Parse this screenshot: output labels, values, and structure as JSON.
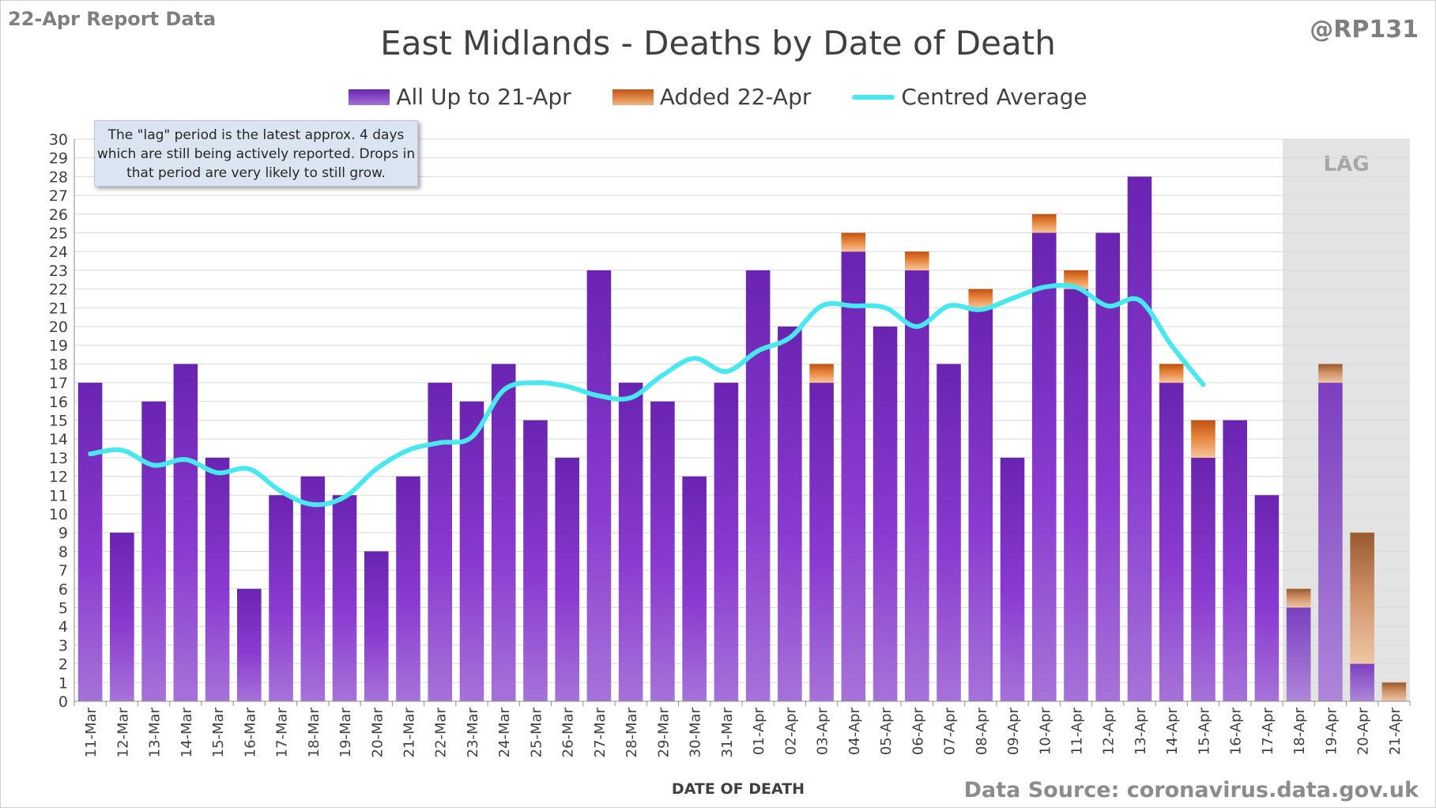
{
  "header": {
    "report_label": "22-Apr Report Data",
    "handle": "@RP131",
    "title": "East Midlands - Deaths by Date of Death"
  },
  "legend": {
    "items": [
      {
        "label": "All Up to 21-Apr",
        "color": "#7a33c4"
      },
      {
        "label": "Added 22-Apr",
        "color": "#e47a2e"
      },
      {
        "label": "Centred Average",
        "color": "#47e8ef"
      }
    ]
  },
  "note": {
    "text": "The \"lag\" period is the latest approx. 4 days which are still being actively reported.  Drops in that period are very likely to still grow."
  },
  "source": "Data Source: coronavirus.data.gov.uk",
  "chart_data": {
    "type": "bar",
    "stacked": true,
    "title": "East Midlands - Deaths by Date of Death",
    "xlabel": "DATE OF DEATH",
    "ylabel": "",
    "ylim": [
      0,
      30
    ],
    "yticks": [
      0,
      1,
      2,
      3,
      4,
      5,
      6,
      7,
      8,
      9,
      10,
      11,
      12,
      13,
      14,
      15,
      16,
      17,
      18,
      19,
      20,
      21,
      22,
      23,
      24,
      25,
      26,
      27,
      28,
      29,
      30
    ],
    "grid": true,
    "legend_position": "top-center",
    "categories": [
      "11-Mar",
      "12-Mar",
      "13-Mar",
      "14-Mar",
      "15-Mar",
      "16-Mar",
      "17-Mar",
      "18-Mar",
      "19-Mar",
      "20-Mar",
      "21-Mar",
      "22-Mar",
      "23-Mar",
      "24-Mar",
      "25-Mar",
      "26-Mar",
      "27-Mar",
      "28-Mar",
      "29-Mar",
      "30-Mar",
      "31-Mar",
      "01-Apr",
      "02-Apr",
      "03-Apr",
      "04-Apr",
      "05-Apr",
      "06-Apr",
      "07-Apr",
      "08-Apr",
      "09-Apr",
      "10-Apr",
      "11-Apr",
      "12-Apr",
      "13-Apr",
      "14-Apr",
      "15-Apr",
      "16-Apr",
      "17-Apr",
      "18-Apr",
      "19-Apr",
      "20-Apr",
      "21-Apr"
    ],
    "series": [
      {
        "name": "All Up to 21-Apr",
        "color": "#7a33c4",
        "values": [
          17,
          9,
          16,
          18,
          13,
          6,
          11,
          12,
          11,
          8,
          12,
          17,
          16,
          18,
          15,
          13,
          23,
          17,
          16,
          12,
          17,
          23,
          20,
          17,
          24,
          20,
          23,
          18,
          21,
          13,
          25,
          22,
          25,
          28,
          17,
          13,
          15,
          11,
          5,
          17,
          2,
          0
        ]
      },
      {
        "name": "Added 22-Apr",
        "color": "#e47a2e",
        "values": [
          0,
          0,
          0,
          0,
          0,
          0,
          0,
          0,
          0,
          0,
          0,
          0,
          0,
          0,
          0,
          0,
          0,
          0,
          0,
          0,
          0,
          0,
          0,
          1,
          1,
          0,
          1,
          0,
          1,
          0,
          1,
          1,
          0,
          0,
          1,
          2,
          0,
          0,
          1,
          1,
          7,
          1
        ]
      },
      {
        "name": "Centred Average",
        "type": "line",
        "color": "#47e8ef",
        "values": [
          13.2,
          13.4,
          12.6,
          12.9,
          12.2,
          12.4,
          11.2,
          10.5,
          10.9,
          12.4,
          13.4,
          13.8,
          14.1,
          16.6,
          17.0,
          16.8,
          16.3,
          16.2,
          17.4,
          18.3,
          17.6,
          18.7,
          19.4,
          21.1,
          21.1,
          21.0,
          20.0,
          21.1,
          20.9,
          21.5,
          22.1,
          22.1,
          21.1,
          21.4,
          19.0,
          16.9,
          null,
          null,
          null,
          null,
          null,
          null
        ]
      }
    ],
    "annotations": [
      {
        "text": "LAG",
        "range": [
          "18-Apr",
          "21-Apr"
        ]
      }
    ]
  }
}
